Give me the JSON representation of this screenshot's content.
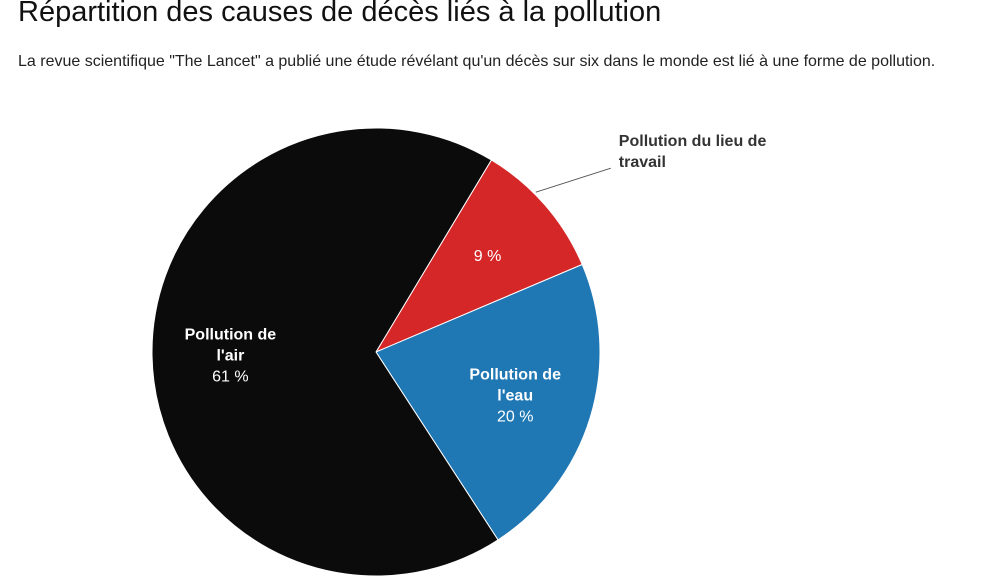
{
  "header": {
    "title": "Répartition des causes de décès liés à la pollution",
    "subtitle": "La revue scientifique \"The Lancet\" a publié une étude révélant qu'un décès sur six dans le monde est lié à une forme de pollution."
  },
  "chart_data": {
    "type": "pie",
    "title": "Répartition des causes de décès liés à la pollution",
    "slices": [
      {
        "name_lines": [
          "Pollution du lieu de",
          "travail"
        ],
        "value": 9,
        "value_label": "9 %",
        "color": "#d62728",
        "label_placement": "outside"
      },
      {
        "name_lines": [
          "Pollution de",
          "l'eau"
        ],
        "value": 20,
        "value_label": "20 %",
        "color": "#1f77b4",
        "label_placement": "inside"
      },
      {
        "name_lines": [
          "Pollution de",
          "l'air"
        ],
        "value": 61,
        "value_label": "61 %",
        "color": "#0b0b0b",
        "label_placement": "inside"
      }
    ]
  }
}
